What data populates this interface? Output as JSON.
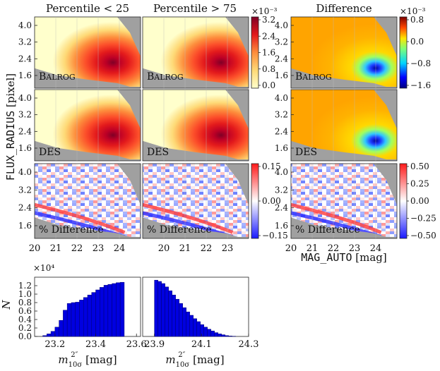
{
  "titles": [
    "Percentile < 25",
    "Percentile > 75",
    "Difference"
  ],
  "ylabel_prefix": "FLUX_RADIUS",
  "ylabel_unit": " [pixel]",
  "xlabel_var": "MAG_AUTO",
  "xlabel_unit": " [mag]",
  "row_labels": [
    "BALROG",
    "DES",
    "% Difference"
  ],
  "y_ticks": [
    "4.0",
    "3.2",
    "2.4",
    "1.6"
  ],
  "x_ticks_maps": [
    "20",
    "21",
    "22",
    "23",
    "24"
  ],
  "colorbars": {
    "balrog_abs": {
      "scale": "×10⁻³",
      "ticks": [
        "3.2",
        "2.4",
        "1.6",
        "0.8",
        "0.0"
      ]
    },
    "balrog_diff": {
      "scale": "×10⁻³",
      "ticks": [
        "0.8",
        "0.0",
        "−0.8",
        "−1.6"
      ]
    },
    "pct_small": {
      "ticks": [
        "0.15",
        "0.00",
        "−0.15"
      ]
    },
    "pct_big": {
      "ticks": [
        "0.50",
        "0.25",
        "0.00",
        "−0.25",
        "−0.50"
      ]
    }
  },
  "hist_ylabel": "N",
  "hist_scale": "×10⁴",
  "hist_y_ticks": [
    "1.2",
    "1.0",
    "0.8",
    "0.6",
    "0.4",
    "0.2",
    "0.0"
  ],
  "hist_xlabel_main": "m",
  "hist_xlabel_sub": "10σ",
  "hist_xlabel_sup": "2″",
  "hist_xlabel_unit": " [mag]",
  "chart_data": [
    {
      "type": "heatmap",
      "title": "Percentile < 25",
      "rows": [
        "BALROG",
        "DES",
        "% Difference"
      ],
      "xlabel": "MAG_AUTO [mag]",
      "ylabel": "FLUX_RADIUS [pixel]",
      "xlim": [
        20,
        25
      ],
      "ylim": [
        1.0,
        4.5
      ],
      "peak": {
        "x": 23.6,
        "y": 2.2
      },
      "colorbar_range": [
        0.0,
        0.0034
      ]
    },
    {
      "type": "heatmap",
      "title": "Percentile > 75",
      "rows": [
        "BALROG",
        "DES",
        "% Difference"
      ],
      "xlim": [
        20,
        25
      ],
      "ylim": [
        1.0,
        4.5
      ],
      "peak": {
        "x": 23.5,
        "y": 2.3
      },
      "colorbar_range": [
        0.0,
        0.0034
      ]
    },
    {
      "type": "heatmap",
      "title": "Difference",
      "rows": [
        "BALROG",
        "DES",
        "% Difference"
      ],
      "xlim": [
        20,
        25
      ],
      "ylim": [
        1.0,
        4.5
      ],
      "colorbar_range": [
        -0.0019,
        0.0009
      ],
      "pct_colorbar_range": [
        -0.5,
        0.5
      ]
    },
    {
      "type": "bar",
      "title": "",
      "xlabel": "m_10σ^2″ [mag]",
      "ylabel": "N (×10⁴)",
      "xlim": [
        23.1,
        23.62
      ],
      "ylim": [
        0,
        1.4
      ],
      "x_ticks": [
        "23.2",
        "23.4",
        "23.6"
      ],
      "bin_edges_start": 23.1,
      "bin_width": 0.02,
      "values": [
        0.0,
        0.0,
        0.02,
        0.06,
        0.12,
        0.22,
        0.38,
        0.62,
        0.78,
        0.8,
        0.81,
        0.86,
        0.92,
        0.98,
        1.04,
        1.1,
        1.16,
        1.21,
        1.23,
        1.25,
        1.27,
        1.28
      ]
    },
    {
      "type": "bar",
      "title": "",
      "xlabel": "m_10σ^2″ [mag]",
      "ylabel": "N (×10⁴)",
      "xlim": [
        23.85,
        24.3
      ],
      "ylim": [
        0,
        1.4
      ],
      "x_ticks": [
        "23.9",
        "24.1",
        "24.3"
      ],
      "bin_edges_start": 23.9,
      "bin_width": 0.015,
      "values": [
        1.33,
        1.3,
        1.25,
        1.17,
        1.08,
        0.98,
        0.88,
        0.78,
        0.68,
        0.58,
        0.5,
        0.42,
        0.35,
        0.28,
        0.22,
        0.17,
        0.13,
        0.09,
        0.06,
        0.04,
        0.02,
        0.01,
        0.005,
        0.0
      ]
    }
  ]
}
